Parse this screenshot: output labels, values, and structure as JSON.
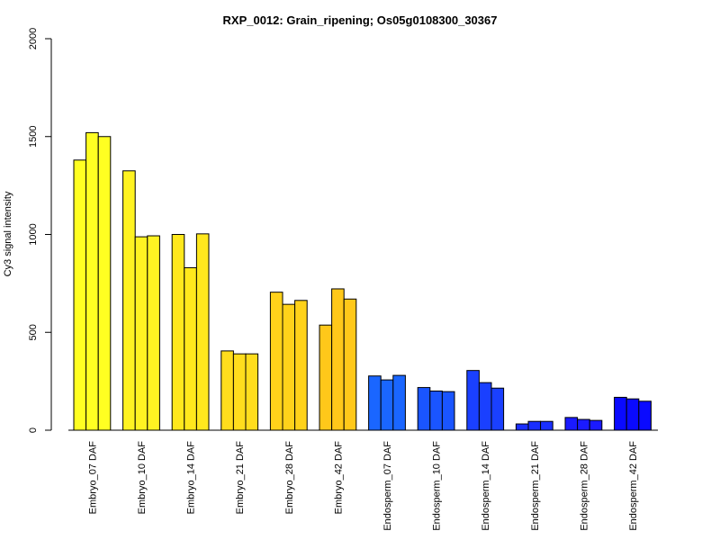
{
  "chart_data": {
    "type": "bar",
    "title": "RXP_0012: Grain_ripening; Os05g0108300_30367",
    "xlabel": "",
    "ylabel": "Cy3 signal intensity",
    "ylim": [
      0,
      2000
    ],
    "yticks": [
      0,
      500,
      1000,
      1500,
      2000
    ],
    "grid": false,
    "categories": [
      "Embryo_07 DAF",
      "Embryo_10 DAF",
      "Embryo_14 DAF",
      "Embryo_21 DAF",
      "Embryo_28 DAF",
      "Embryo_42 DAF",
      "Endosperm_07 DAF",
      "Endosperm_10 DAF",
      "Endosperm_14 DAF",
      "Endosperm_21 DAF",
      "Endosperm_28 DAF",
      "Endosperm_42 DAF"
    ],
    "colors": [
      "#FFFF22",
      "#FFF322",
      "#FFE81D",
      "#FFDD1D",
      "#FFD21A",
      "#FFC81A",
      "#1A66FF",
      "#1A55FF",
      "#1A40FF",
      "#1A2FFF",
      "#1A1AFF",
      "#0A0AFF"
    ],
    "replicates": [
      [
        1380,
        1520,
        1500
      ],
      [
        1325,
        988,
        993
      ],
      [
        1000,
        830,
        1003
      ],
      [
        405,
        390,
        390
      ],
      [
        705,
        643,
        663
      ],
      [
        537,
        722,
        670
      ],
      [
        277,
        257,
        280
      ],
      [
        218,
        200,
        197
      ],
      [
        305,
        243,
        215
      ],
      [
        32,
        45,
        45
      ],
      [
        65,
        55,
        50
      ],
      [
        168,
        160,
        148
      ]
    ]
  }
}
